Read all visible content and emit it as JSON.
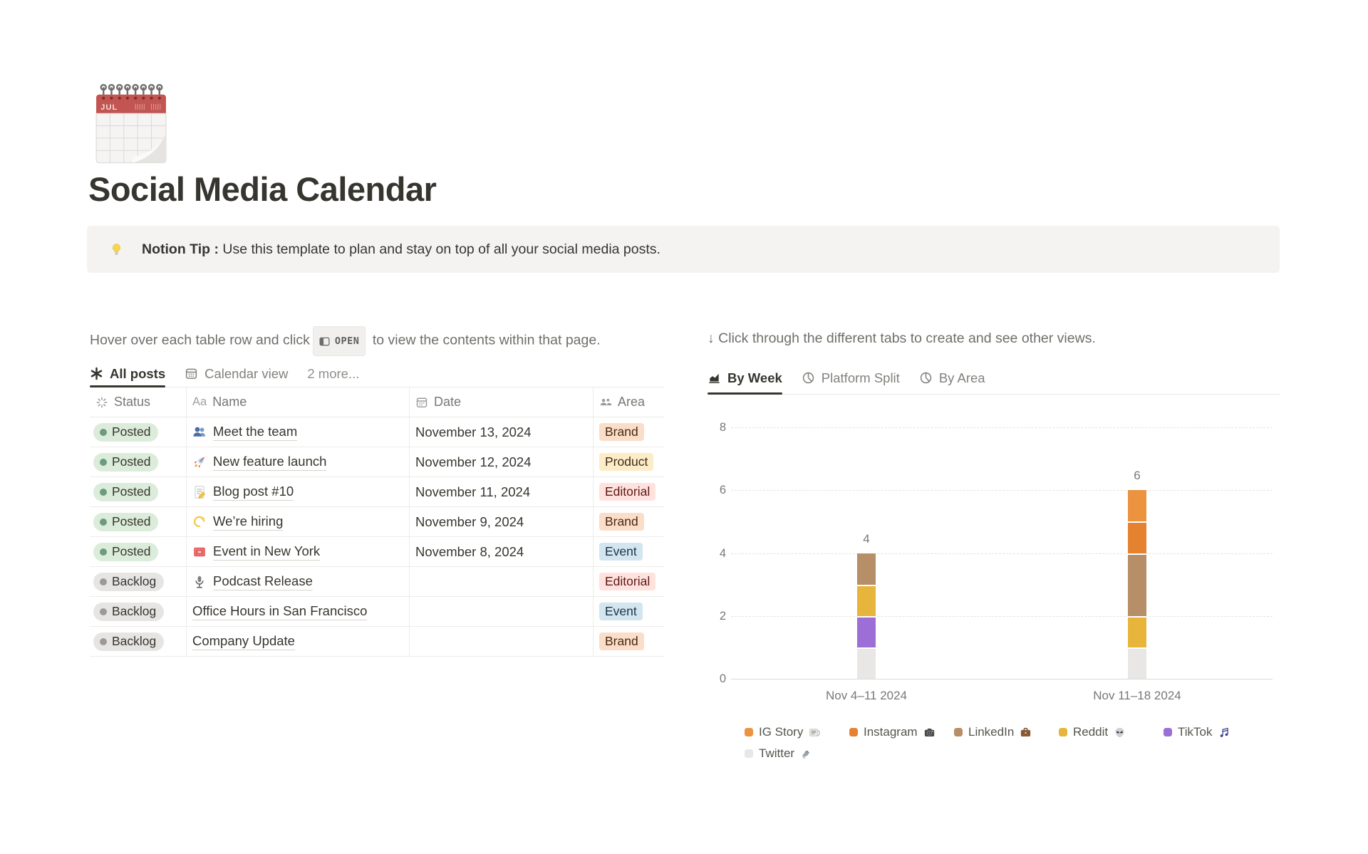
{
  "page": {
    "title": "Social Media Calendar",
    "icon": "spiral-calendar"
  },
  "callout": {
    "icon": "light-bulb",
    "bold": "Notion Tip :",
    "text": "Use this template to plan and stay on top of all your social media posts."
  },
  "left_panel": {
    "instruction": {
      "before": "Hover over each table row and click",
      "badge": "OPEN",
      "after": "to view the contents within that page."
    },
    "tabs": [
      {
        "label": "All posts",
        "icon": "asterisk",
        "active": true
      },
      {
        "label": "Calendar view",
        "icon": "calendar",
        "active": false
      },
      {
        "label": "2 more...",
        "icon": null,
        "active": false
      }
    ],
    "table": {
      "columns": [
        {
          "label": "Status",
          "icon": "status-spinner"
        },
        {
          "label": "Name",
          "icon": "Aa"
        },
        {
          "label": "Date",
          "icon": "calendar"
        },
        {
          "label": "Area",
          "icon": "people"
        }
      ],
      "rows": [
        {
          "status": "Posted",
          "status_color": "green",
          "icon": "busts",
          "name": "Meet the team",
          "date": "November 13, 2024",
          "area": "Brand",
          "area_color": "orange"
        },
        {
          "status": "Posted",
          "status_color": "green",
          "icon": "rocket",
          "name": "New feature launch",
          "date": "November 12, 2024",
          "area": "Product",
          "area_color": "yellow"
        },
        {
          "status": "Posted",
          "status_color": "green",
          "icon": "memo",
          "name": "Blog post #10",
          "date": "November 11, 2024",
          "area": "Editorial",
          "area_color": "red"
        },
        {
          "status": "Posted",
          "status_color": "green",
          "icon": "dizzy",
          "name": "We’re hiring",
          "date": "November 9, 2024",
          "area": "Brand",
          "area_color": "orange"
        },
        {
          "status": "Posted",
          "status_color": "green",
          "icon": "ticket",
          "name": "Event in New York",
          "date": "November 8, 2024",
          "area": "Event",
          "area_color": "blue"
        },
        {
          "status": "Backlog",
          "status_color": "gray",
          "icon": "microphone",
          "name": "Podcast Release",
          "date": "",
          "area": "Editorial",
          "area_color": "red"
        },
        {
          "status": "Backlog",
          "status_color": "gray",
          "icon": null,
          "name": "Office Hours in San Francisco",
          "date": "",
          "area": "Event",
          "area_color": "blue"
        },
        {
          "status": "Backlog",
          "status_color": "gray",
          "icon": null,
          "name": "Company Update",
          "date": "",
          "area": "Brand",
          "area_color": "orange"
        }
      ]
    }
  },
  "right_panel": {
    "instruction": "↓ Click through the different tabs to create and see other views.",
    "tabs": [
      {
        "label": "By Week",
        "icon": "bar-chart",
        "active": true
      },
      {
        "label": "Platform Split",
        "icon": "pie-chart",
        "active": false
      },
      {
        "label": "By Area",
        "icon": "pie-chart",
        "active": false
      }
    ]
  },
  "chart_data": {
    "type": "bar",
    "stacked": true,
    "title": "",
    "categories": [
      "Nov 4–11 2024",
      "Nov 11–18 2024"
    ],
    "series": [
      {
        "name": "IG Story",
        "icon": "newspaper",
        "color": "#EC9340",
        "values": [
          0,
          1
        ]
      },
      {
        "name": "Instagram",
        "icon": "camera",
        "color": "#E5822F",
        "values": [
          0,
          1
        ]
      },
      {
        "name": "LinkedIn",
        "icon": "briefcase",
        "color": "#B68E67",
        "values": [
          1,
          2
        ]
      },
      {
        "name": "Reddit",
        "icon": "alien",
        "color": "#E7B43C",
        "values": [
          1,
          1
        ]
      },
      {
        "name": "TikTok",
        "icon": "music-notes",
        "color": "#9D6FD6",
        "values": [
          1,
          0
        ]
      },
      {
        "name": "Twitter",
        "icon": "bird",
        "color": "#E8E7E5",
        "values": [
          1,
          1
        ]
      }
    ],
    "stack_order_bottom_to_top": [
      "Twitter",
      "TikTok",
      "Reddit",
      "LinkedIn",
      "Instagram",
      "IG Story"
    ],
    "totals": [
      4,
      6
    ],
    "xlabel": "",
    "ylabel": "",
    "ylim": [
      0,
      8
    ],
    "yticks": [
      0,
      2,
      4,
      6,
      8
    ],
    "grid": "dashed horizontal",
    "legend_position": "bottom"
  },
  "colors": {
    "status": {
      "green": {
        "bg": "#DBECDA",
        "dot": "#6C9B7D"
      },
      "gray": {
        "bg": "#E6E5E3",
        "dot": "#9B9A97"
      }
    },
    "tags": {
      "orange": {
        "bg": "#FADEC9",
        "text": "#49290E"
      },
      "yellow": {
        "bg": "#FDECC8",
        "text": "#402C1B"
      },
      "red": {
        "bg": "#FFE2DD",
        "text": "#5D1715"
      },
      "blue": {
        "bg": "#D3E5EF",
        "text": "#183347"
      }
    },
    "active_tab_underline": "#37352F"
  }
}
